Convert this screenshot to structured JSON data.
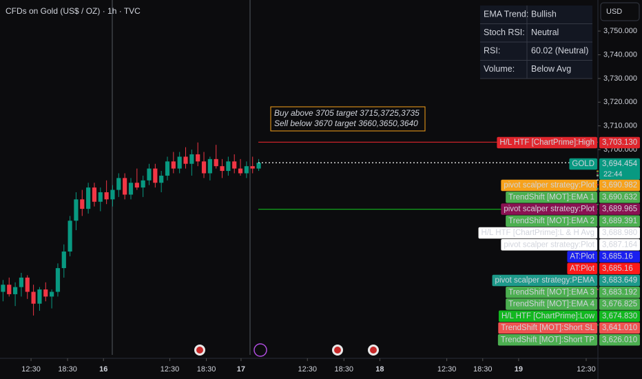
{
  "chart_data": {
    "type": "candlestick",
    "title": "CFDs on Gold (US$ / OZ) · 1h · TVC",
    "currency": "USD",
    "x": [
      0,
      1,
      2,
      3,
      4,
      5,
      6,
      7,
      8,
      9,
      10,
      11,
      12,
      13,
      14,
      15,
      16,
      17,
      18,
      19,
      20,
      21,
      22,
      23,
      24,
      25,
      26,
      27,
      28,
      29,
      30,
      31,
      32,
      33,
      34,
      35,
      36,
      37,
      38,
      39,
      40,
      41,
      42
    ],
    "open": [
      3640,
      3643,
      3639,
      3642,
      3646,
      3640,
      3635,
      3641,
      3638,
      3640,
      3650,
      3657,
      3670,
      3679,
      3675,
      3684,
      3678,
      3682,
      3679,
      3683,
      3688,
      3681,
      3686,
      3684,
      3687,
      3692,
      3686,
      3689,
      3695,
      3692,
      3697,
      3694,
      3698,
      3695,
      3690,
      3696,
      3693,
      3691,
      3695,
      3692,
      3690,
      3693,
      3692
    ],
    "high": [
      3645,
      3646,
      3644,
      3648,
      3647,
      3643,
      3642,
      3644,
      3641,
      3652,
      3660,
      3672,
      3682,
      3683,
      3686,
      3686,
      3684,
      3687,
      3685,
      3690,
      3690,
      3688,
      3692,
      3689,
      3694,
      3694,
      3691,
      3697,
      3699,
      3699,
      3701,
      3700,
      3703,
      3699,
      3697,
      3702,
      3696,
      3697,
      3698,
      3696,
      3695,
      3697,
      3696
    ],
    "low": [
      3636,
      3638,
      3634,
      3638,
      3637,
      3630,
      3632,
      3636,
      3633,
      3638,
      3646,
      3655,
      3666,
      3672,
      3673,
      3676,
      3674,
      3677,
      3676,
      3680,
      3679,
      3679,
      3683,
      3680,
      3685,
      3684,
      3682,
      3687,
      3690,
      3690,
      3692,
      3689,
      3693,
      3688,
      3687,
      3692,
      3688,
      3689,
      3690,
      3689,
      3688,
      3690,
      3691
    ],
    "close": [
      3643,
      3639,
      3642,
      3646,
      3640,
      3635,
      3641,
      3638,
      3640,
      3650,
      3657,
      3670,
      3679,
      3675,
      3684,
      3678,
      3682,
      3679,
      3683,
      3688,
      3681,
      3686,
      3684,
      3687,
      3692,
      3686,
      3689,
      3695,
      3692,
      3697,
      3694,
      3698,
      3695,
      3690,
      3696,
      3693,
      3691,
      3695,
      3692,
      3690,
      3693,
      3692,
      3694.454
    ],
    "up_color": "#089981",
    "down_color": "#f23645",
    "xlim": [
      -0.5,
      97.5
    ],
    "xticks": [
      {
        "value": 4.6,
        "label": "12:30"
      },
      {
        "value": 10.6,
        "label": "18:30"
      },
      {
        "value": 16.5,
        "label": "16"
      },
      {
        "value": 27.4,
        "label": "12:30"
      },
      {
        "value": 33.4,
        "label": "18:30"
      },
      {
        "value": 39.1,
        "label": "17"
      },
      {
        "value": 50,
        "label": "12:30"
      },
      {
        "value": 56,
        "label": "18:30"
      },
      {
        "value": 61.9,
        "label": "18"
      },
      {
        "value": 72.9,
        "label": "12:30"
      },
      {
        "value": 78.8,
        "label": "18:30"
      },
      {
        "value": 84.7,
        "label": "19"
      },
      {
        "value": 95.8,
        "label": "12:30"
      }
    ],
    "ylim": [
      3613.4,
      3763.1
    ],
    "yticks": [
      {
        "value": 3750,
        "label": "3,750.000"
      },
      {
        "value": 3740,
        "label": "3,740.000"
      },
      {
        "value": 3730,
        "label": "3,730.000"
      },
      {
        "value": 3720,
        "label": "3,720.000"
      },
      {
        "value": 3710,
        "label": "3,710.000"
      },
      {
        "value": 3700,
        "label": "3,700.000"
      }
    ],
    "grid": false,
    "annotations": [
      "Buy above 3705 target 3715,3725,3735",
      "Sell below 3670 target 3660,3650,3640"
    ],
    "annotation_color": "#f7a21b",
    "table": [
      {
        "label": "EMA Trend:",
        "value": "Bullish",
        "color": "#22c55e"
      },
      {
        "label": "Stoch RSI:",
        "value": "Neutral",
        "color": "#26c6da"
      },
      {
        "label": "RSI:",
        "value": "60.02 (Neutral)",
        "color": "#f7a21b"
      },
      {
        "label": "Volume:",
        "value": "Below Avg",
        "color": "#e040fb"
      }
    ],
    "price_labels": [
      {
        "name": "H/L HTF [ChartPrime]:High",
        "value": 3703.13,
        "value_label": "3,703.130",
        "color": "#e0262d",
        "text_color": "#ffffff",
        "line": "solid"
      },
      {
        "name": "GOLD",
        "value": 3694.454,
        "value_label": "3,694.454",
        "sub_label": "22:44",
        "color": "#089981",
        "text_color": "#ffffff",
        "line": "dotted"
      },
      {
        "name": "pivot scalper strategy:Plot",
        "value": 3690.982,
        "value_label": "3,690.982",
        "color": "#f7a21b",
        "text_color": "#000000"
      },
      {
        "name": "TrendShift [MOT]:EMA 1",
        "value": 3690.632,
        "value_label": "3,690.632",
        "color": "#4caf50",
        "text_color": "#ffffff"
      },
      {
        "name": "pivot scalper strategy:Plot",
        "value": 3689.965,
        "value_label": "3,689.965",
        "color": "#8a1152",
        "text_color": "#ffffff"
      },
      {
        "name": "TrendShift [MOT]:EMA 2",
        "value": 3689.391,
        "value_label": "3,689.391",
        "color": "#4caf50",
        "text_color": "#ffffff"
      },
      {
        "name": "H/L HTF [ChartPrime]:L & H Avg",
        "value": 3688.98,
        "value_label": "3,688.980",
        "color": "#ffffff",
        "text_color": "#000000"
      },
      {
        "name": "pivot scalper strategy:Plot",
        "value": 3687.164,
        "value_label": "3,687.164",
        "color": "#ffffff",
        "text_color": "#000000"
      },
      {
        "name": "AT:Plot",
        "value": 3685.16,
        "value_label": "3,685.16",
        "color": "#1a1ff0",
        "text_color": "#ffffff"
      },
      {
        "name": "AT:Plot",
        "value": 3685.16,
        "value_label": "3,685.16",
        "color": "#ff1a1a",
        "text_color": "#ffffff"
      },
      {
        "name": "pivot scalper strategy:PEMA",
        "value": 3683.649,
        "value_label": "3,683.649",
        "color": "#1d9a8a",
        "text_color": "#ffffff"
      },
      {
        "name": "TrendShift [MOT]:EMA 3",
        "value": 3683.192,
        "value_label": "3,683.192",
        "color": "#4caf50",
        "text_color": "#ffffff"
      },
      {
        "name": "TrendShift [MOT]:EMA 4",
        "value": 3676.825,
        "value_label": "3,676.825",
        "color": "#4caf50",
        "text_color": "#ffffff"
      },
      {
        "name": "H/L HTF [ChartPrime]:Low",
        "value": 3674.83,
        "value_label": "3,674.830",
        "color": "#12b81f",
        "text_color": "#ffffff",
        "line": "solid"
      },
      {
        "name": "TrendShift [MOT]:Short SL",
        "value": 3641.01,
        "value_label": "3,641.010",
        "color": "#ef5350",
        "text_color": "#ffffff"
      },
      {
        "name": "TrendShift [MOT]:Short TP",
        "value": 3626.01,
        "value_label": "3,626.010",
        "color": "#4caf50",
        "text_color": "#ffffff"
      }
    ]
  }
}
